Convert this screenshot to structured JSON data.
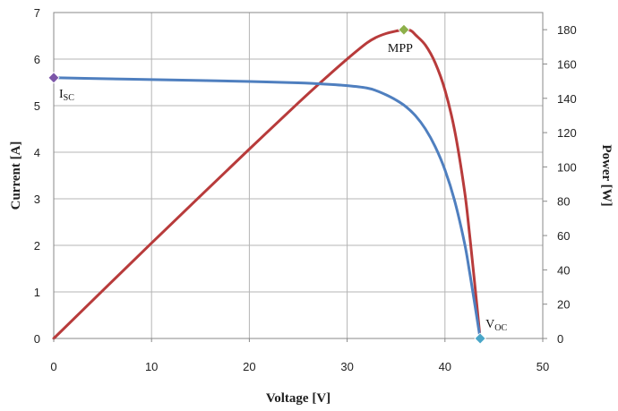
{
  "chart_data": {
    "type": "line",
    "xlabel": "Voltage [V]",
    "ylabel_left": "Current [A]",
    "ylabel_right": "Power [W]",
    "xlim": [
      0,
      50
    ],
    "ylim_left": [
      0,
      7
    ],
    "ylim_right": [
      0,
      190
    ],
    "x_ticks": [
      "0",
      "10",
      "20",
      "30",
      "40",
      "50"
    ],
    "y_left_ticks": [
      "0",
      "1",
      "2",
      "3",
      "4",
      "5",
      "6",
      "7"
    ],
    "y_right_ticks": [
      "0",
      "20",
      "40",
      "60",
      "80",
      "100",
      "120",
      "140",
      "160",
      "180"
    ],
    "grid": true,
    "series": [
      {
        "axis": "left",
        "color": "#4f7fbf",
        "x": [
          0,
          5,
          10,
          15,
          20,
          25,
          28,
          30,
          32,
          33,
          34,
          35,
          36,
          37,
          38,
          39,
          40,
          41,
          42,
          42.5,
          43,
          43.6
        ],
        "values": [
          5.6,
          5.58,
          5.56,
          5.54,
          5.52,
          5.49,
          5.46,
          5.43,
          5.38,
          5.32,
          5.23,
          5.12,
          4.98,
          4.78,
          4.5,
          4.12,
          3.62,
          2.95,
          2.05,
          1.45,
          0.8,
          0
        ]
      },
      {
        "axis": "right",
        "color": "#b83b3b",
        "x": [
          0,
          5,
          10,
          15,
          20,
          25,
          28,
          30,
          32,
          33,
          34,
          35,
          35.8,
          36.5,
          37,
          38,
          39,
          40,
          41,
          42,
          42.5,
          43,
          43.6
        ],
        "values": [
          0,
          27.9,
          55.6,
          83.1,
          110.4,
          137.3,
          152.9,
          162.9,
          172.2,
          175.6,
          177.8,
          179.2,
          180,
          179.5,
          176.9,
          171,
          160.7,
          144.8,
          121,
          86.1,
          61.6,
          34.4,
          0
        ]
      }
    ],
    "annotations": [
      {
        "id": "isc",
        "label": "I",
        "sub": "SC",
        "x": 0,
        "y": 5.6,
        "axis": "left",
        "marker_color": "#7b56a8"
      },
      {
        "id": "mpp",
        "label": "MPP",
        "sub": "",
        "x": 35.8,
        "y": 180,
        "axis": "right",
        "marker_color": "#8db04a"
      },
      {
        "id": "voc",
        "label": "V",
        "sub": "OC",
        "x": 43.6,
        "y": 0,
        "axis": "left",
        "marker_color": "#4aa6c8"
      }
    ],
    "grid_color": "#b5b5b5",
    "axis_color": "#888888"
  }
}
